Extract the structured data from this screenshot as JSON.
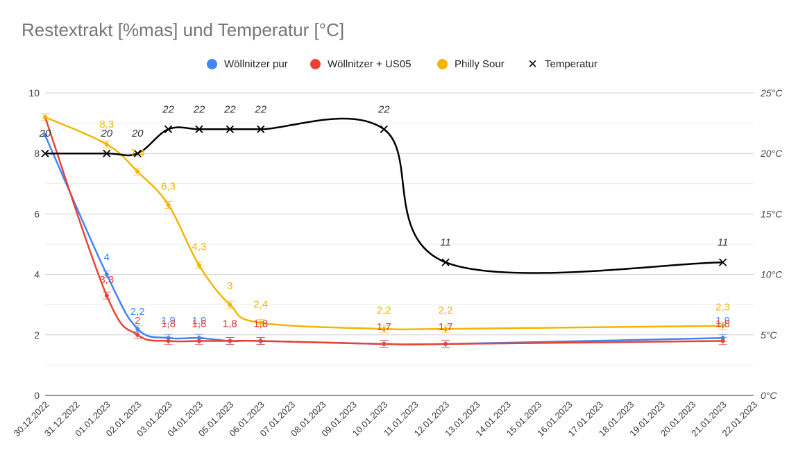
{
  "chart_data": {
    "type": "line",
    "title": "Restextrakt [%mas] und Temperatur [°C]",
    "categories": [
      "30.12.2022",
      "31.12.2022",
      "01.01.2023",
      "02.01.2023",
      "03.01.2023",
      "04.01.2023",
      "05.01.2023",
      "06.01.2023",
      "07.01.2023",
      "08.01.2023",
      "09.01.2023",
      "10.01.2023",
      "11.01.2023",
      "12.01.2023",
      "13.01.2023",
      "14.01.2023",
      "15.01.2023",
      "16.01.2023",
      "17.01.2023",
      "18.01.2023",
      "19.01.2023",
      "20.01.2023",
      "21.01.2023",
      "22.01.2023"
    ],
    "ylim_left": [
      0,
      10
    ],
    "yticks_left": [
      "0",
      "2",
      "4",
      "6",
      "8",
      "10"
    ],
    "ylim_right": [
      0,
      25
    ],
    "yticks_right": [
      "0°C",
      "5°C",
      "10°C",
      "15°C",
      "20°C",
      "25°C"
    ],
    "series": [
      {
        "name": "Wöllnitzer pur",
        "color": "#4285F4",
        "axis": "left",
        "marker": "dot",
        "points": [
          [
            0,
            8.6
          ],
          [
            2,
            4.0
          ],
          [
            3,
            2.2
          ],
          [
            4,
            1.9
          ],
          [
            5,
            1.9
          ],
          [
            6,
            1.8
          ],
          [
            7,
            1.8
          ],
          [
            11,
            1.7
          ],
          [
            13,
            1.7
          ],
          [
            22,
            1.9
          ]
        ],
        "labels": [
          null,
          "4",
          "2,2",
          "1,9",
          "1,9",
          "1,8",
          "1,8",
          "1,7",
          "1,7",
          "1,9"
        ]
      },
      {
        "name": "Wöllnitzer + US05",
        "color": "#EA4335",
        "axis": "left",
        "marker": "dot",
        "points": [
          [
            0,
            9.2
          ],
          [
            2,
            3.3
          ],
          [
            3,
            2.0
          ],
          [
            4,
            1.8
          ],
          [
            5,
            1.8
          ],
          [
            6,
            1.8
          ],
          [
            7,
            1.8
          ],
          [
            11,
            1.7
          ],
          [
            13,
            1.7
          ],
          [
            22,
            1.8
          ]
        ],
        "labels": [
          null,
          "3,3",
          "2",
          "1,8",
          "1,8",
          "1,8",
          "1,8",
          "1,7",
          "1,7",
          "1,8"
        ]
      },
      {
        "name": "Philly Sour",
        "color": "#F4B400",
        "axis": "left",
        "marker": "dot",
        "points": [
          [
            0,
            9.2
          ],
          [
            2,
            8.3
          ],
          [
            3,
            7.4
          ],
          [
            4,
            6.3
          ],
          [
            5,
            4.3
          ],
          [
            6,
            3.0
          ],
          [
            7,
            2.4
          ],
          [
            11,
            2.2
          ],
          [
            13,
            2.2
          ],
          [
            22,
            2.3
          ]
        ],
        "labels": [
          null,
          "8,3",
          "7,4",
          "6,3",
          "4,3",
          "3",
          "2,4",
          "2,2",
          "2,2",
          "2,3"
        ]
      },
      {
        "name": "Temperatur",
        "color": "#000000",
        "axis": "right",
        "marker": "cross",
        "points": [
          [
            0,
            20
          ],
          [
            2,
            20
          ],
          [
            3,
            20
          ],
          [
            4,
            22
          ],
          [
            5,
            22
          ],
          [
            6,
            22
          ],
          [
            7,
            22
          ],
          [
            11,
            22
          ],
          [
            13,
            11
          ],
          [
            22,
            11
          ]
        ],
        "labels": [
          "20",
          "20",
          "20",
          "22",
          "22",
          "22",
          "22",
          "22",
          "11",
          "11"
        ]
      }
    ]
  }
}
